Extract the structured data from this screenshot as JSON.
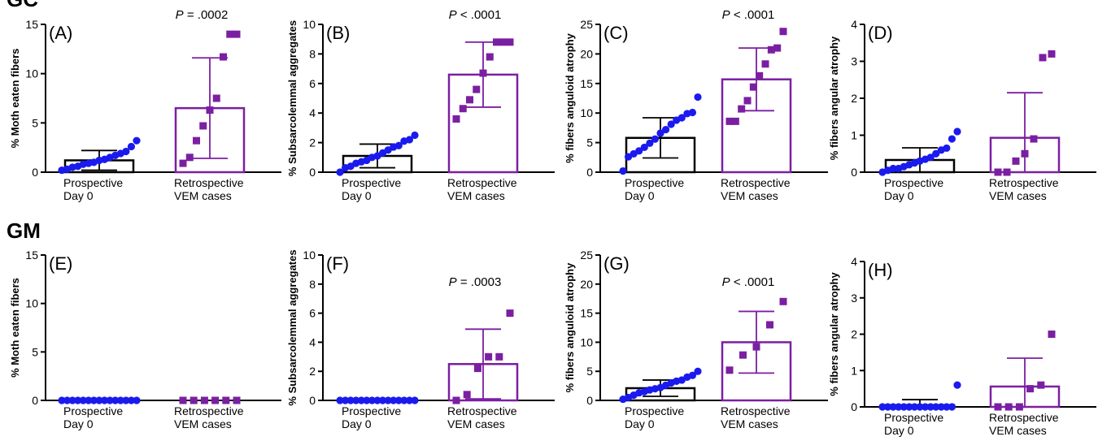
{
  "rows": [
    {
      "label": "GC"
    },
    {
      "label": "GM"
    }
  ],
  "colors": {
    "prospective": "#1a1aee",
    "retrospective": "#7b1fa2",
    "axis": "#000000"
  },
  "chart_data": [
    {
      "type": "bar",
      "panel": "(A)",
      "ylabel": "% Moth eaten fibers",
      "ylim": [
        0,
        15
      ],
      "yticks": [
        0,
        5,
        10,
        15
      ],
      "categories": [
        "Prospective\nDay 0",
        "Retrospective\nVEM cases"
      ],
      "means": [
        1.2,
        6.5
      ],
      "sd": [
        1.0,
        5.1
      ],
      "points": [
        [
          0.2,
          0.3,
          0.5,
          0.6,
          0.8,
          0.9,
          1.0,
          1.2,
          1.3,
          1.5,
          1.7,
          1.9,
          2.1,
          2.6,
          3.2
        ],
        [
          0.9,
          1.5,
          3.2,
          4.7,
          6.3,
          7.5,
          11.7,
          14.0,
          14.0
        ]
      ],
      "annotation": "P = .0002"
    },
    {
      "type": "bar",
      "panel": "(B)",
      "ylabel": "% Subsarcolemmal aggregates",
      "ylim": [
        0,
        10
      ],
      "yticks": [
        0,
        2,
        4,
        6,
        8,
        10
      ],
      "categories": [
        "Prospective\nDay 0",
        "Retrospective\nVEM cases"
      ],
      "means": [
        1.1,
        6.6
      ],
      "sd": [
        0.8,
        2.2
      ],
      "points": [
        [
          0.0,
          0.3,
          0.4,
          0.6,
          0.7,
          0.8,
          1.0,
          1.1,
          1.3,
          1.5,
          1.7,
          1.8,
          2.1,
          2.2,
          2.5
        ],
        [
          3.6,
          4.3,
          4.9,
          5.6,
          6.7,
          7.8,
          8.8,
          8.8,
          8.8
        ]
      ],
      "annotation": "P < .0001"
    },
    {
      "type": "bar",
      "panel": "(C)",
      "ylabel": "% fibers anguloid atrophy",
      "ylim": [
        0,
        25
      ],
      "yticks": [
        0,
        5,
        10,
        15,
        20,
        25
      ],
      "categories": [
        "Prospective\nDay 0",
        "Retrospective\nVEM cases"
      ],
      "means": [
        5.8,
        15.7
      ],
      "sd": [
        3.4,
        5.3
      ],
      "points": [
        [
          0.2,
          2.6,
          3.1,
          3.6,
          4.2,
          4.9,
          5.6,
          6.6,
          7.2,
          8.1,
          8.8,
          9.2,
          9.9,
          10.1,
          12.7
        ],
        [
          8.6,
          8.6,
          10.7,
          12.1,
          14.4,
          16.3,
          18.3,
          20.7,
          21.0,
          23.8
        ]
      ],
      "annotation": "P < .0001"
    },
    {
      "type": "bar",
      "panel": "(D)",
      "ylabel": "% fibers angular atrophy",
      "ylim": [
        0,
        4
      ],
      "yticks": [
        0,
        1,
        2,
        3,
        4
      ],
      "categories": [
        "Prospective\nDay 0",
        "Retrospective\nVEM cases"
      ],
      "means": [
        0.33,
        0.93
      ],
      "sd": [
        0.33,
        1.22
      ],
      "points": [
        [
          0.0,
          0.05,
          0.1,
          0.1,
          0.15,
          0.2,
          0.25,
          0.3,
          0.35,
          0.4,
          0.5,
          0.6,
          0.65,
          0.9,
          1.1
        ],
        [
          0.0,
          0.0,
          0.3,
          0.5,
          0.9,
          3.1,
          3.2
        ]
      ],
      "annotation": ""
    },
    {
      "type": "bar",
      "panel": "(E)",
      "ylabel": "% Moth eaten fibers",
      "ylim": [
        0,
        15
      ],
      "yticks": [
        0,
        5,
        10,
        15
      ],
      "categories": [
        "Prospective\nDay 0",
        "Retrospective\nVEM cases"
      ],
      "means": [
        0,
        0
      ],
      "sd": [
        0,
        0
      ],
      "points": [
        [
          0,
          0,
          0,
          0,
          0,
          0,
          0,
          0,
          0,
          0,
          0,
          0,
          0,
          0,
          0
        ],
        [
          0,
          0,
          0,
          0,
          0,
          0
        ]
      ],
      "annotation": ""
    },
    {
      "type": "bar",
      "panel": "(F)",
      "ylabel": "% Subsarcolemmal aggregates",
      "ylim": [
        0,
        10
      ],
      "yticks": [
        0,
        2,
        4,
        6,
        8,
        10
      ],
      "categories": [
        "Prospective\nDay 0",
        "Retrospective\nVEM cases"
      ],
      "means": [
        0,
        2.5
      ],
      "sd": [
        0,
        2.4
      ],
      "points": [
        [
          0,
          0,
          0,
          0,
          0,
          0,
          0,
          0,
          0,
          0,
          0,
          0,
          0,
          0,
          0
        ],
        [
          0.0,
          0.4,
          2.2,
          3.0,
          3.0,
          6.0
        ]
      ],
      "annotation": "P = .0003"
    },
    {
      "type": "bar",
      "panel": "(G)",
      "ylabel": "% fibers anguloid atrophy",
      "ylim": [
        0,
        25
      ],
      "yticks": [
        0,
        5,
        10,
        15,
        20,
        25
      ],
      "categories": [
        "Prospective\nDay 0",
        "Retrospective\nVEM cases"
      ],
      "means": [
        2.1,
        10.0
      ],
      "sd": [
        1.4,
        5.3
      ],
      "points": [
        [
          0.2,
          0.5,
          0.9,
          1.3,
          1.5,
          1.8,
          2.0,
          2.2,
          2.6,
          3.0,
          3.3,
          3.5,
          4.0,
          4.3,
          5.0
        ],
        [
          5.2,
          7.8,
          9.2,
          13.0,
          17.0
        ]
      ],
      "annotation": "P < .0001"
    },
    {
      "type": "bar",
      "panel": "(H)",
      "ylabel": "% fibers angular atrophy",
      "ylim": [
        0,
        4
      ],
      "yticks": [
        0,
        1,
        2,
        3,
        4
      ],
      "categories": [
        "Prospective\nDay 0",
        "Retrospective\nVEM cases"
      ],
      "means": [
        0.05,
        0.56
      ],
      "sd": [
        0.15,
        0.78
      ],
      "points": [
        [
          0,
          0,
          0,
          0,
          0,
          0,
          0,
          0,
          0,
          0,
          0,
          0,
          0,
          0,
          0.6
        ],
        [
          0.0,
          0.0,
          0.0,
          0.5,
          0.6,
          2.0
        ]
      ],
      "annotation": ""
    }
  ]
}
